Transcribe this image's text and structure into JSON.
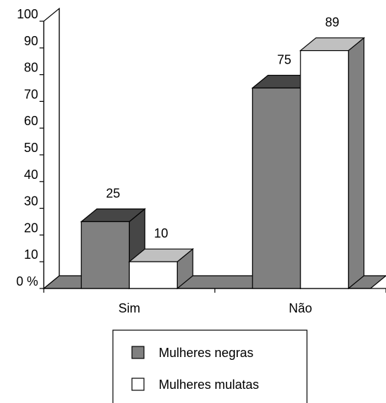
{
  "chart_data": {
    "type": "bar",
    "categories": [
      "Sim",
      "Não"
    ],
    "series": [
      {
        "name": "Mulheres negras",
        "values": [
          25,
          75
        ],
        "color": "#808080"
      },
      {
        "name": "Mulheres mulatas",
        "values": [
          10,
          89
        ],
        "color": "#ffffff"
      }
    ],
    "ylim": [
      0,
      100
    ],
    "yticks": [
      0,
      10,
      20,
      30,
      40,
      50,
      60,
      70,
      80,
      90,
      100
    ],
    "ytick_labels": [
      "0 %",
      "10",
      "20",
      "30",
      "40",
      "50",
      "60",
      "70",
      "80",
      "90",
      "100"
    ],
    "data_labels": true,
    "style": "3d",
    "legend_position": "bottom"
  }
}
